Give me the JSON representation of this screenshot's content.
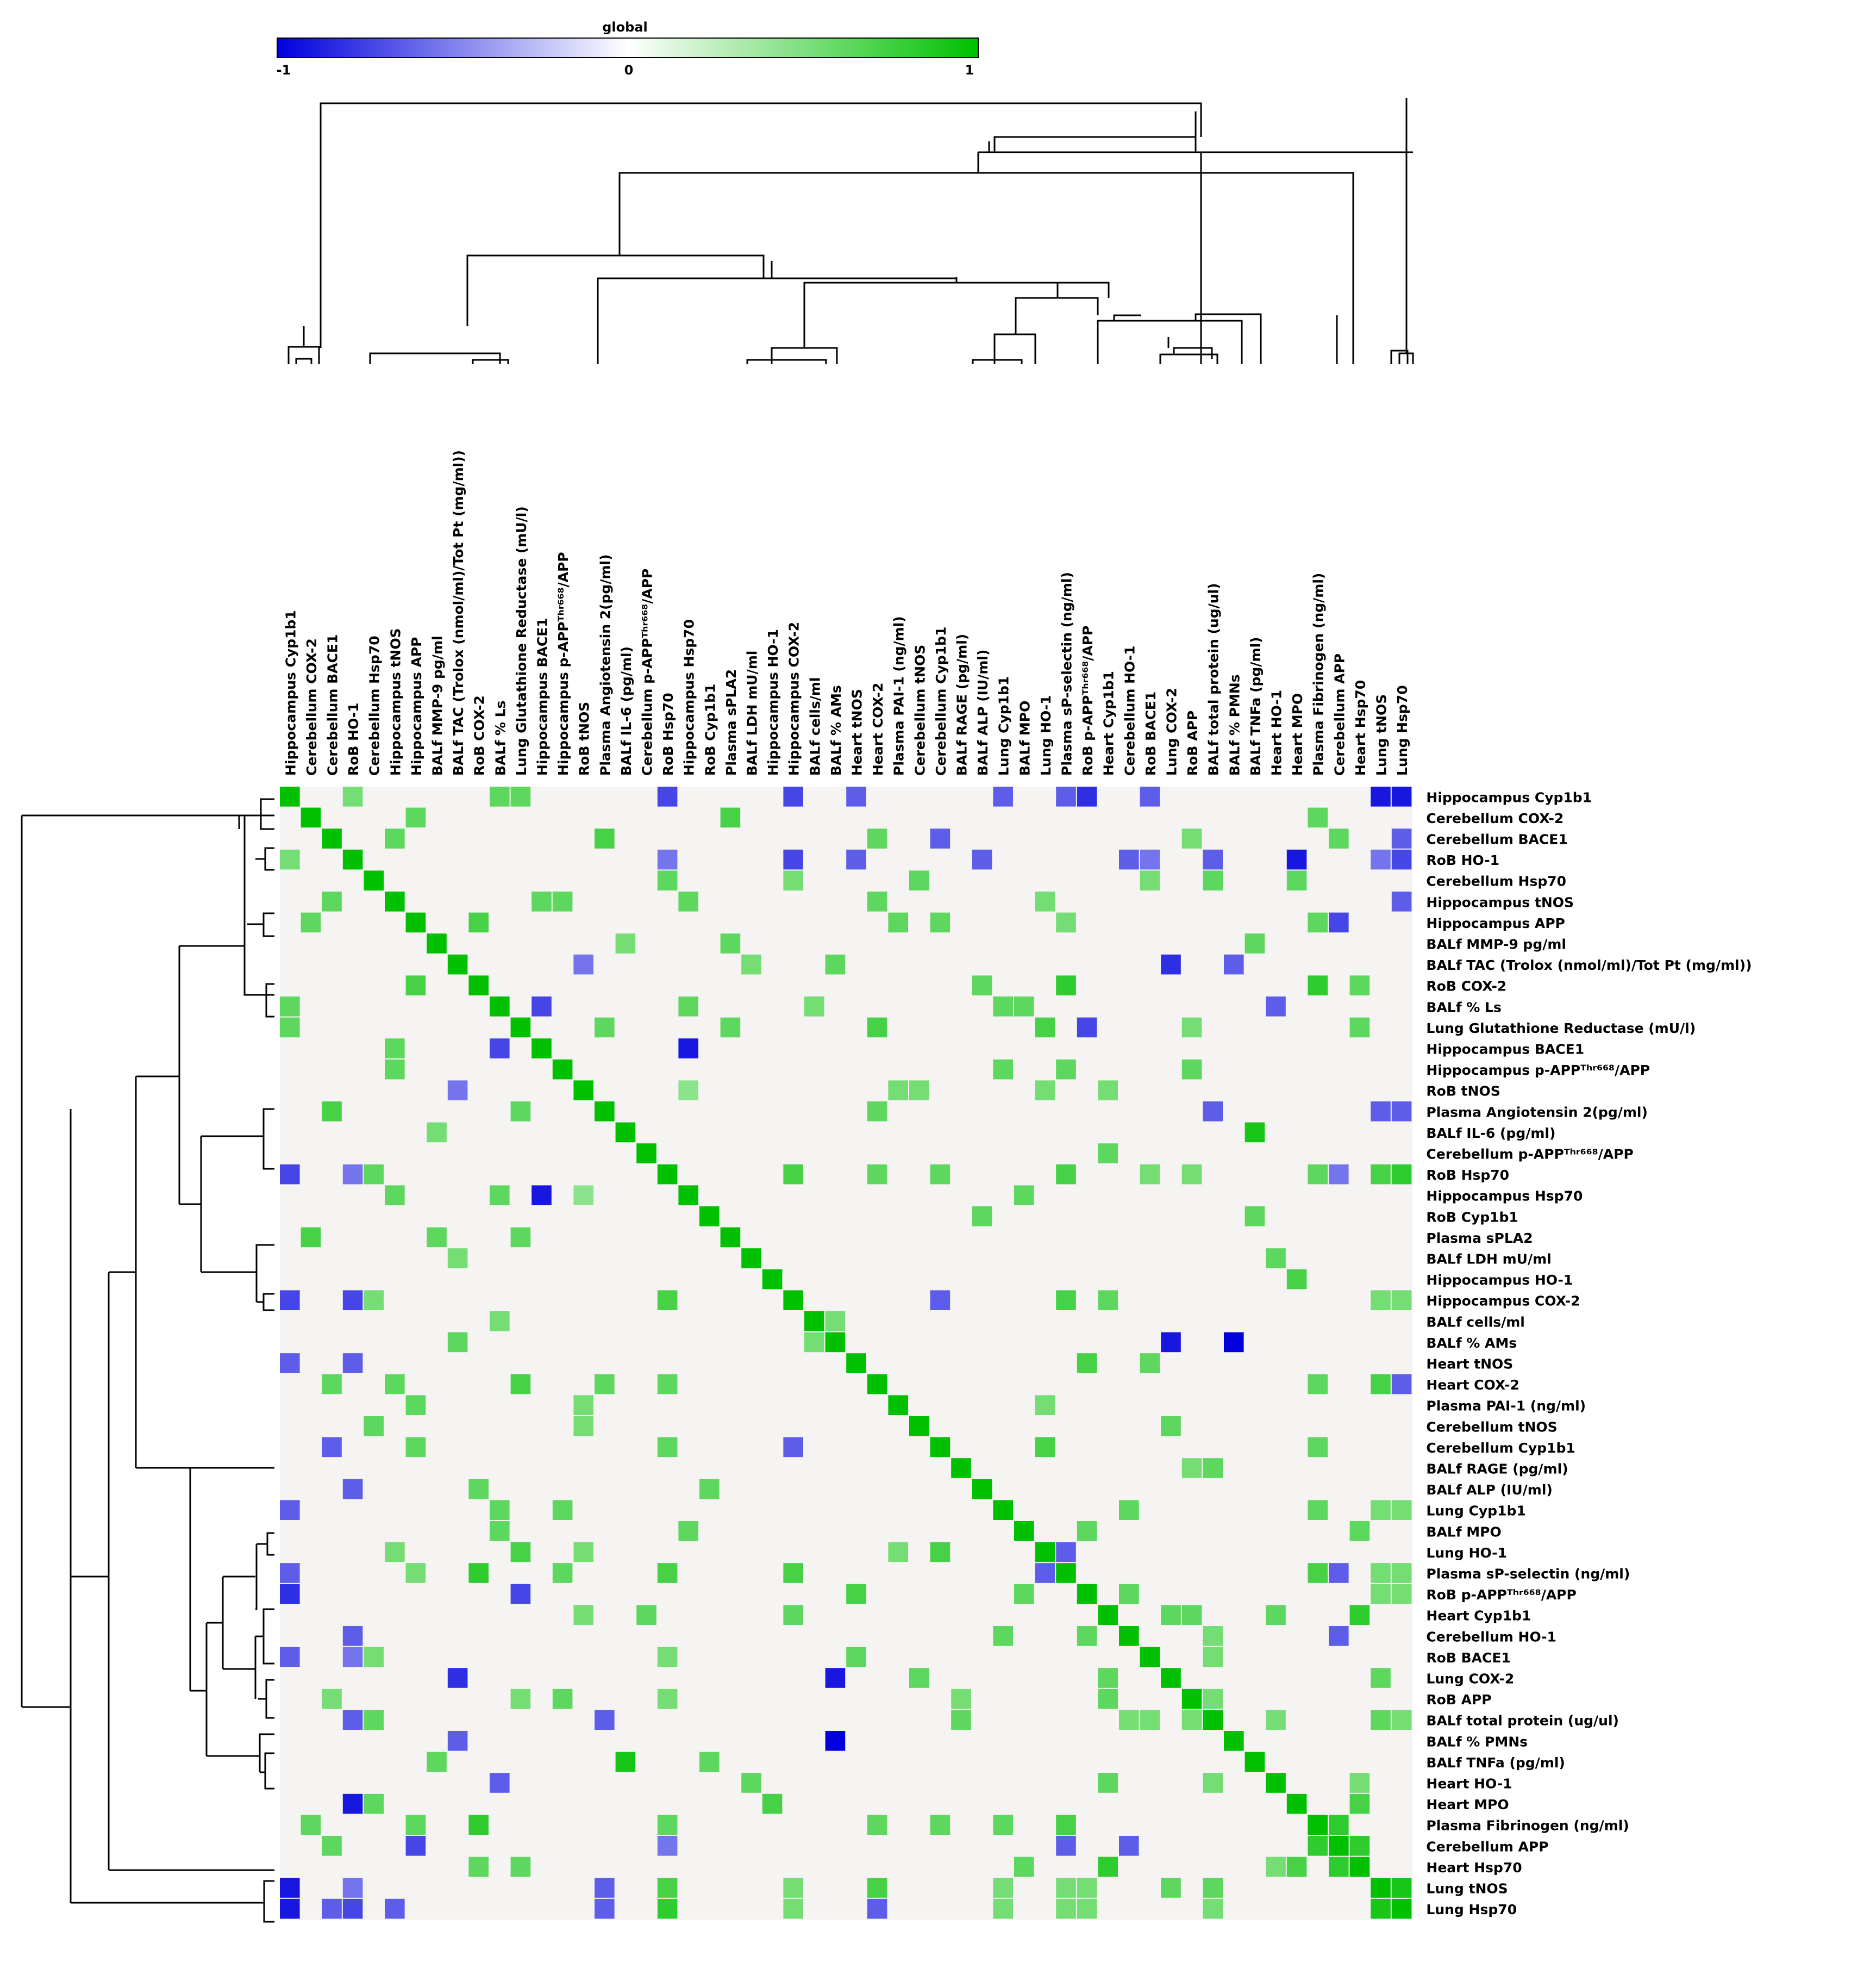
{
  "colorbar": {
    "title": "global",
    "ticks": [
      "-1",
      "0",
      "1"
    ],
    "colors": {
      "negative": "#0000dd",
      "zero": "#f6f3f3",
      "positive": "#00c000"
    }
  },
  "chart_data": {
    "type": "heatmap",
    "title": "",
    "xlabel": "",
    "ylabel": "",
    "value_range": [
      -1,
      1
    ],
    "labels": [
      "Hippocampus Cyp1b1",
      "Cerebellum COX-2",
      "Cerebellum BACE1",
      "RoB HO-1",
      "Cerebellum Hsp70",
      "Hippocampus tNOS",
      "Hippocampus APP",
      "BALf MMP-9 pg/ml",
      "BALf TAC (Trolox (nmol/ml)/Tot Pt (mg/ml))",
      "RoB COX-2",
      "BALf % Ls",
      "Lung Glutathione Reductase (mU/l)",
      "Hippocampus BACE1",
      "Hippocampus p-APPᵀʰʳ⁶⁶⁸/APP",
      "RoB tNOS",
      "Plasma Angiotensin 2(pg/ml)",
      "BALf IL-6 (pg/ml)",
      "Cerebellum p-APPᵀʰʳ⁶⁶⁸/APP",
      "RoB Hsp70",
      "Hippocampus Hsp70",
      "RoB Cyp1b1",
      "Plasma sPLA2",
      "BALf LDH mU/ml",
      "Hippocampus HO-1",
      "Hippocampus COX-2",
      "BALf cells/ml",
      "BALf % AMs",
      "Heart tNOS",
      "Heart COX-2",
      "Plasma PAI-1 (ng/ml)",
      "Cerebellum tNOS",
      "Cerebellum Cyp1b1",
      "BALf RAGE (pg/ml)",
      "BALf ALP (IU/ml)",
      "Lung Cyp1b1",
      "BALf MPO",
      "Lung HO-1",
      "Plasma sP-selectin (ng/ml)",
      "RoB p-APPᵀʰʳ⁶⁶⁸/APP",
      "Heart Cyp1b1",
      "Cerebellum HO-1",
      "RoB BACE1",
      "Lung COX-2",
      "RoB APP",
      "BALf total protein (ug/ul)",
      "BALf % PMNs",
      "BALf TNFa (pg/ml)",
      "Heart HO-1",
      "Heart MPO",
      "Plasma Fibrinogen (ng/ml)",
      "Cerebellum APP",
      "Heart Hsp70",
      "Lung tNOS",
      "Lung Hsp70"
    ],
    "correlations": [
      [
        0,
        3,
        0.5
      ],
      [
        0,
        10,
        0.6
      ],
      [
        0,
        11,
        0.6
      ],
      [
        0,
        18,
        -0.7
      ],
      [
        0,
        24,
        -0.7
      ],
      [
        0,
        27,
        -0.6
      ],
      [
        0,
        34,
        -0.6
      ],
      [
        0,
        37,
        -0.6
      ],
      [
        0,
        38,
        -0.8
      ],
      [
        0,
        41,
        -0.6
      ],
      [
        0,
        52,
        -0.9
      ],
      [
        0,
        53,
        -0.9
      ],
      [
        1,
        6,
        0.6
      ],
      [
        1,
        21,
        0.7
      ],
      [
        1,
        49,
        0.6
      ],
      [
        2,
        5,
        0.6
      ],
      [
        2,
        15,
        0.7
      ],
      [
        2,
        28,
        0.6
      ],
      [
        2,
        31,
        -0.6
      ],
      [
        2,
        43,
        0.5
      ],
      [
        2,
        50,
        0.6
      ],
      [
        2,
        53,
        -0.6
      ],
      [
        3,
        18,
        -0.5
      ],
      [
        3,
        24,
        -0.7
      ],
      [
        3,
        27,
        -0.6
      ],
      [
        3,
        33,
        -0.6
      ],
      [
        3,
        40,
        -0.6
      ],
      [
        3,
        41,
        -0.5
      ],
      [
        3,
        44,
        -0.6
      ],
      [
        3,
        48,
        -0.9
      ],
      [
        3,
        52,
        -0.5
      ],
      [
        3,
        53,
        -0.7
      ],
      [
        4,
        18,
        0.6
      ],
      [
        4,
        24,
        0.5
      ],
      [
        4,
        30,
        0.6
      ],
      [
        4,
        41,
        0.5
      ],
      [
        4,
        44,
        0.6
      ],
      [
        4,
        48,
        0.6
      ],
      [
        5,
        12,
        0.6
      ],
      [
        5,
        13,
        0.6
      ],
      [
        5,
        19,
        0.6
      ],
      [
        5,
        28,
        0.6
      ],
      [
        5,
        36,
        0.5
      ],
      [
        5,
        53,
        -0.6
      ],
      [
        6,
        9,
        0.7
      ],
      [
        6,
        29,
        0.6
      ],
      [
        6,
        31,
        0.6
      ],
      [
        6,
        37,
        0.5
      ],
      [
        6,
        49,
        0.6
      ],
      [
        6,
        50,
        -0.7
      ],
      [
        7,
        16,
        0.5
      ],
      [
        7,
        21,
        0.6
      ],
      [
        7,
        46,
        0.6
      ],
      [
        8,
        14,
        -0.5
      ],
      [
        8,
        22,
        0.5
      ],
      [
        8,
        26,
        0.6
      ],
      [
        8,
        42,
        -0.8
      ],
      [
        8,
        45,
        -0.6
      ],
      [
        9,
        33,
        0.6
      ],
      [
        9,
        37,
        0.8
      ],
      [
        9,
        49,
        0.8
      ],
      [
        9,
        51,
        0.6
      ],
      [
        10,
        12,
        -0.7
      ],
      [
        10,
        19,
        0.6
      ],
      [
        10,
        25,
        0.5
      ],
      [
        10,
        34,
        0.6
      ],
      [
        10,
        35,
        0.6
      ],
      [
        10,
        47,
        -0.6
      ],
      [
        11,
        15,
        0.6
      ],
      [
        11,
        21,
        0.6
      ],
      [
        11,
        28,
        0.7
      ],
      [
        11,
        36,
        0.7
      ],
      [
        11,
        38,
        -0.7
      ],
      [
        11,
        43,
        0.5
      ],
      [
        11,
        51,
        0.6
      ],
      [
        12,
        19,
        -0.9
      ],
      [
        13,
        34,
        0.6
      ],
      [
        13,
        37,
        0.6
      ],
      [
        13,
        43,
        0.6
      ],
      [
        14,
        19,
        0.4
      ],
      [
        14,
        29,
        0.5
      ],
      [
        14,
        30,
        0.5
      ],
      [
        14,
        36,
        0.5
      ],
      [
        14,
        39,
        0.5
      ],
      [
        15,
        28,
        0.6
      ],
      [
        15,
        44,
        -0.6
      ],
      [
        15,
        52,
        -0.6
      ],
      [
        15,
        53,
        -0.6
      ],
      [
        16,
        46,
        0.9
      ],
      [
        17,
        39,
        0.6
      ],
      [
        18,
        24,
        0.7
      ],
      [
        18,
        28,
        0.6
      ],
      [
        18,
        31,
        0.6
      ],
      [
        18,
        37,
        0.7
      ],
      [
        18,
        41,
        0.5
      ],
      [
        18,
        43,
        0.5
      ],
      [
        18,
        49,
        0.6
      ],
      [
        18,
        50,
        -0.5
      ],
      [
        18,
        52,
        0.7
      ],
      [
        18,
        53,
        0.8
      ],
      [
        19,
        35,
        0.6
      ],
      [
        20,
        33,
        0.6
      ],
      [
        20,
        46,
        0.6
      ],
      [
        22,
        47,
        0.6
      ],
      [
        23,
        48,
        0.7
      ],
      [
        24,
        31,
        -0.6
      ],
      [
        24,
        37,
        0.7
      ],
      [
        24,
        39,
        0.6
      ],
      [
        24,
        52,
        0.5
      ],
      [
        24,
        53,
        0.5
      ],
      [
        25,
        26,
        0.5
      ],
      [
        26,
        42,
        -0.9
      ],
      [
        26,
        45,
        -1.0
      ],
      [
        27,
        38,
        0.7
      ],
      [
        27,
        41,
        0.6
      ],
      [
        28,
        49,
        0.6
      ],
      [
        28,
        52,
        0.7
      ],
      [
        28,
        53,
        -0.6
      ],
      [
        29,
        36,
        0.5
      ],
      [
        30,
        42,
        0.6
      ],
      [
        31,
        36,
        0.7
      ],
      [
        31,
        49,
        0.6
      ],
      [
        32,
        43,
        0.5
      ],
      [
        32,
        44,
        0.6
      ],
      [
        34,
        40,
        0.6
      ],
      [
        34,
        49,
        0.6
      ],
      [
        34,
        52,
        0.5
      ],
      [
        34,
        53,
        0.5
      ],
      [
        35,
        38,
        0.6
      ],
      [
        35,
        51,
        0.6
      ],
      [
        36,
        37,
        -0.6
      ],
      [
        37,
        49,
        0.7
      ],
      [
        37,
        50,
        -0.6
      ],
      [
        37,
        52,
        0.5
      ],
      [
        37,
        53,
        0.5
      ],
      [
        38,
        40,
        0.6
      ],
      [
        38,
        52,
        0.5
      ],
      [
        38,
        53,
        0.5
      ],
      [
        39,
        42,
        0.6
      ],
      [
        39,
        43,
        0.6
      ],
      [
        39,
        47,
        0.6
      ],
      [
        39,
        51,
        0.8
      ],
      [
        40,
        44,
        0.5
      ],
      [
        40,
        50,
        -0.6
      ],
      [
        41,
        44,
        0.5
      ],
      [
        42,
        52,
        0.6
      ],
      [
        43,
        44,
        0.5
      ],
      [
        44,
        47,
        0.5
      ],
      [
        44,
        52,
        0.6
      ],
      [
        44,
        53,
        0.5
      ],
      [
        47,
        51,
        0.5
      ],
      [
        48,
        51,
        0.7
      ],
      [
        49,
        50,
        0.8
      ],
      [
        50,
        51,
        0.8
      ],
      [
        52,
        53,
        0.9
      ]
    ]
  }
}
